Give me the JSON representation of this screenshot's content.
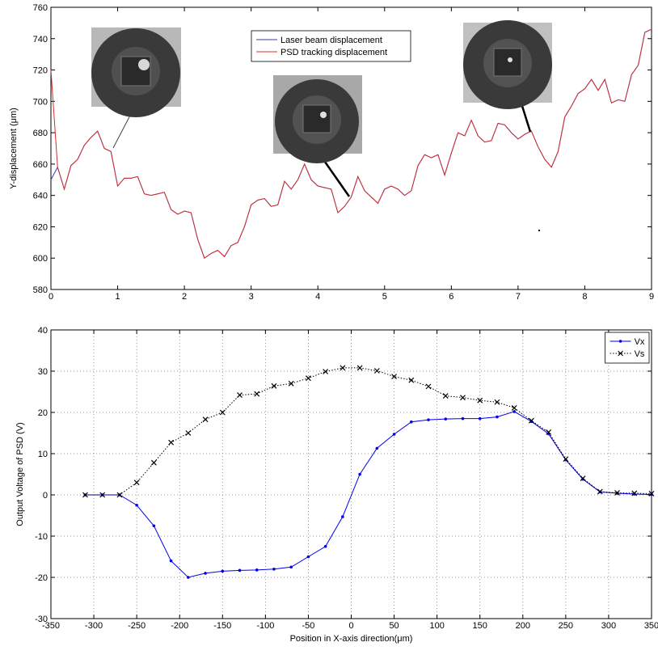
{
  "chart_data": [
    {
      "type": "line",
      "y_label": "Y-displacement (μm)",
      "x": [
        0,
        0.1,
        0.2,
        0.3,
        0.4,
        0.5,
        0.6,
        0.7,
        0.8,
        0.9,
        1,
        1.1,
        1.2,
        1.3,
        1.4,
        1.5,
        1.6,
        1.7,
        1.8,
        1.9,
        2,
        2.1,
        2.2,
        2.3,
        2.4,
        2.5,
        2.6,
        2.7,
        2.8,
        2.9,
        3,
        3.1,
        3.2,
        3.3,
        3.4,
        3.5,
        3.6,
        3.7,
        3.8,
        3.9,
        4,
        4.1,
        4.2,
        4.3,
        4.4,
        4.5,
        4.6,
        4.7,
        4.8,
        4.9,
        5,
        5.1,
        5.2,
        5.3,
        5.4,
        5.5,
        5.6,
        5.7,
        5.8,
        5.9,
        6,
        6.1,
        6.2,
        6.3,
        6.4,
        6.5,
        6.6,
        6.7,
        6.8,
        6.9,
        7,
        7.1,
        7.2,
        7.3,
        7.4,
        7.5,
        7.6,
        7.7,
        7.8,
        7.9,
        8,
        8.1,
        8.2,
        8.3,
        8.4,
        8.5,
        8.6,
        8.7,
        8.8,
        8.9,
        9
      ],
      "series": [
        {
          "name": "Laser beam displacement",
          "color": "#3a3aa8",
          "values": [
            650,
            658,
            644,
            659,
            663,
            672,
            677,
            681,
            670,
            668,
            646,
            651,
            651,
            652,
            641,
            640,
            641,
            642,
            631,
            628,
            630,
            629,
            612,
            600,
            603,
            605,
            601,
            608,
            610,
            620,
            634,
            637,
            638,
            633,
            634,
            649,
            644,
            650,
            660,
            650,
            646,
            645,
            644,
            629,
            633,
            639,
            652,
            643,
            639,
            635,
            644,
            646,
            644,
            640,
            643,
            659,
            666,
            664,
            666,
            653,
            667,
            680,
            678,
            688,
            678,
            674,
            675,
            686,
            685,
            680,
            676,
            679,
            681,
            671,
            663,
            658,
            668,
            690,
            697,
            705,
            708,
            714,
            707,
            714,
            699,
            701,
            700,
            717,
            723,
            744,
            746
          ]
        },
        {
          "name": "PSD tracking displacement",
          "color": "#d03030",
          "values": [
            720,
            658,
            644,
            659,
            663,
            672,
            677,
            681,
            670,
            668,
            646,
            651,
            651,
            652,
            641,
            640,
            641,
            642,
            631,
            628,
            630,
            629,
            612,
            600,
            603,
            605,
            601,
            608,
            610,
            620,
            634,
            637,
            638,
            633,
            634,
            649,
            644,
            650,
            660,
            650,
            646,
            645,
            644,
            629,
            633,
            639,
            652,
            643,
            639,
            635,
            644,
            646,
            644,
            640,
            643,
            659,
            666,
            664,
            666,
            653,
            667,
            680,
            678,
            688,
            678,
            674,
            675,
            686,
            685,
            680,
            676,
            679,
            681,
            671,
            663,
            658,
            668,
            690,
            697,
            705,
            708,
            714,
            707,
            714,
            699,
            701,
            700,
            717,
            723,
            744,
            746
          ]
        }
      ],
      "xlim": [
        0,
        9
      ],
      "xticks": [
        0,
        1,
        2,
        3,
        4,
        5,
        6,
        7,
        8,
        9
      ],
      "ylim": [
        580,
        760
      ],
      "yticks": [
        580,
        600,
        620,
        640,
        660,
        680,
        700,
        720,
        740,
        760
      ],
      "grid": false,
      "legend": "upper center"
    },
    {
      "type": "line",
      "x_label": "Position in X-axis direction(μm)",
      "y_label": "Output Voltage of PSD (V)",
      "x": [
        -310,
        -290,
        -270,
        -250,
        -230,
        -210,
        -190,
        -170,
        -150,
        -130,
        -110,
        -90,
        -70,
        -50,
        -30,
        -10,
        10,
        30,
        50,
        70,
        90,
        110,
        130,
        150,
        170,
        190,
        210,
        230,
        250,
        270,
        290,
        310,
        330,
        350
      ],
      "series": [
        {
          "name": "Vx",
          "color": "#0000ee",
          "marker": "dot",
          "line_style": "solid",
          "values": [
            0,
            0,
            0,
            -2.5,
            -7.5,
            -16,
            -20,
            -19,
            -18.5,
            -18.3,
            -18.2,
            -18,
            -17.5,
            -15,
            -12.5,
            -5.3,
            5,
            11.3,
            14.7,
            17.7,
            18.2,
            18.4,
            18.5,
            18.5,
            18.9,
            20.2,
            17.8,
            14.8,
            8.5,
            3.8,
            0.7,
            0.4,
            0.2,
            0.1
          ]
        },
        {
          "name": "Vs",
          "color": "#000000",
          "marker": "x",
          "line_style": "dotted",
          "values": [
            0,
            0,
            0,
            3,
            7.8,
            12.7,
            15,
            18.3,
            20,
            24.2,
            24.5,
            26.4,
            27,
            28.3,
            29.9,
            30.8,
            30.8,
            30.1,
            28.7,
            27.8,
            26.3,
            24,
            23.6,
            22.9,
            22.5,
            21.1,
            18,
            15.2,
            8.7,
            4,
            0.8,
            0.5,
            0.4,
            0.3
          ]
        }
      ],
      "xlim": [
        -350,
        350
      ],
      "xticks": [
        -350,
        -300,
        -250,
        -200,
        -150,
        -100,
        -50,
        0,
        50,
        100,
        150,
        200,
        250,
        300,
        350
      ],
      "ylim": [
        -30,
        40
      ],
      "yticks": [
        -30,
        -20,
        -10,
        0,
        10,
        20,
        30,
        40
      ],
      "grid": true,
      "legend": "upper right"
    }
  ]
}
